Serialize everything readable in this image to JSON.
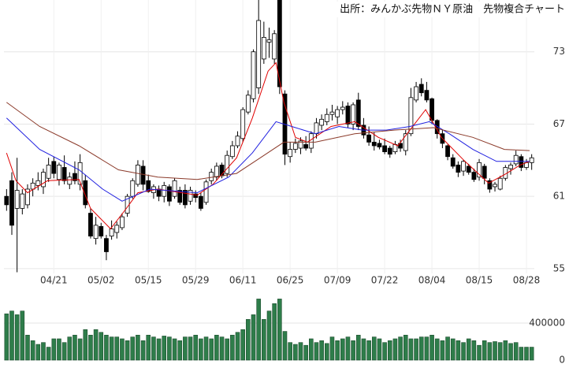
{
  "chart_data": {
    "type": "candlestick",
    "title": "出所：みんかぶ先物ＮＹ原油　先物複合チャート",
    "up_color": "#ffffff",
    "down_color": "#000000",
    "grid": true,
    "xlim": [
      -0.5,
      100.5
    ],
    "xticks": [
      {
        "value": 9,
        "label": "04/21"
      },
      {
        "value": 18,
        "label": "05/02"
      },
      {
        "value": 27,
        "label": "05/15"
      },
      {
        "value": 36,
        "label": "05/29"
      },
      {
        "value": 45,
        "label": "06/11"
      },
      {
        "value": 54,
        "label": "06/25"
      },
      {
        "value": 63,
        "label": "07/09"
      },
      {
        "value": 72,
        "label": "07/22"
      },
      {
        "value": 81,
        "label": "08/04"
      },
      {
        "value": 90,
        "label": "08/15"
      },
      {
        "value": 99,
        "label": "08/28"
      }
    ],
    "ylim": [
      54.6,
      77.3
    ],
    "yticks": [
      55,
      61,
      67,
      73
    ],
    "ohlc": [
      [
        61.0,
        61.6,
        59.8,
        60.3
      ],
      [
        62.3,
        63.0,
        57.8,
        58.6
      ],
      [
        60.0,
        64.2,
        54.7,
        61.5
      ],
      [
        60.0,
        61.6,
        59.5,
        61.2
      ],
      [
        60.3,
        62.0,
        60.0,
        61.6
      ],
      [
        61.6,
        62.5,
        61.0,
        62.1
      ],
      [
        61.9,
        63.0,
        61.5,
        62.3
      ],
      [
        61.8,
        63.3,
        61.2,
        63.0
      ],
      [
        62.5,
        64.2,
        62.2,
        63.6
      ],
      [
        63.9,
        64.3,
        62.5,
        62.9
      ],
      [
        62.4,
        63.8,
        61.9,
        63.6
      ],
      [
        63.4,
        64.4,
        62.0,
        62.3
      ],
      [
        62.0,
        63.0,
        61.6,
        62.6
      ],
      [
        62.9,
        63.9,
        62.0,
        62.3
      ],
      [
        62.0,
        64.5,
        61.5,
        63.8
      ],
      [
        62.3,
        62.8,
        60.0,
        60.3
      ],
      [
        59.6,
        60.0,
        57.5,
        57.7
      ],
      [
        57.5,
        59.3,
        57.0,
        58.6
      ],
      [
        58.5,
        58.8,
        57.5,
        57.7
      ],
      [
        57.5,
        57.8,
        55.7,
        56.4
      ],
      [
        57.7,
        59.0,
        57.4,
        58.3
      ],
      [
        58.0,
        58.9,
        57.5,
        58.6
      ],
      [
        58.4,
        59.6,
        58.2,
        59.3
      ],
      [
        59.6,
        61.2,
        59.3,
        61.0
      ],
      [
        61.0,
        62.5,
        60.8,
        62.3
      ],
      [
        62.0,
        64.0,
        61.8,
        63.6
      ],
      [
        63.5,
        64.0,
        61.5,
        62.0
      ],
      [
        62.3,
        62.8,
        61.3,
        61.4
      ],
      [
        61.3,
        62.0,
        60.8,
        61.8
      ],
      [
        61.6,
        61.9,
        60.6,
        61.0
      ],
      [
        61.0,
        62.2,
        60.5,
        61.9
      ],
      [
        61.8,
        62.0,
        60.2,
        60.6
      ],
      [
        61.0,
        62.5,
        60.8,
        62.3
      ],
      [
        61.5,
        61.8,
        60.3,
        60.5
      ],
      [
        61.5,
        62.0,
        60.0,
        60.3
      ],
      [
        60.6,
        61.8,
        60.3,
        61.5
      ],
      [
        61.2,
        61.5,
        60.5,
        60.9
      ],
      [
        61.0,
        61.3,
        59.8,
        60.0
      ],
      [
        60.5,
        62.4,
        60.3,
        62.2
      ],
      [
        62.3,
        63.3,
        62.0,
        63.0
      ],
      [
        62.6,
        63.8,
        62.3,
        63.5
      ],
      [
        63.6,
        63.8,
        62.5,
        62.7
      ],
      [
        62.9,
        64.8,
        62.6,
        64.4
      ],
      [
        64.3,
        65.6,
        64.1,
        65.2
      ],
      [
        65.2,
        66.4,
        65.0,
        66.0
      ],
      [
        65.8,
        68.4,
        65.5,
        68.2
      ],
      [
        68.0,
        69.8,
        67.8,
        69.4
      ],
      [
        69.1,
        73.2,
        68.8,
        73.0
      ],
      [
        70.0,
        77.3,
        69.5,
        75.6
      ],
      [
        72.4,
        75.5,
        72.0,
        74.2
      ],
      [
        73.8,
        75.0,
        72.5,
        74.0
      ],
      [
        72.4,
        74.8,
        72.0,
        74.5
      ],
      [
        77.3,
        77.3,
        69.5,
        70.1
      ],
      [
        69.5,
        69.8,
        63.6,
        64.5
      ],
      [
        64.3,
        65.5,
        63.8,
        64.9
      ],
      [
        64.9,
        65.8,
        64.6,
        65.4
      ],
      [
        65.0,
        65.9,
        64.5,
        65.6
      ],
      [
        65.3,
        66.0,
        64.8,
        65.0
      ],
      [
        65.0,
        66.4,
        64.6,
        66.2
      ],
      [
        66.2,
        67.5,
        65.8,
        67.1
      ],
      [
        66.9,
        67.8,
        66.5,
        67.4
      ],
      [
        67.2,
        68.3,
        66.9,
        67.8
      ],
      [
        67.8,
        68.6,
        67.3,
        68.0
      ],
      [
        67.6,
        68.5,
        67.0,
        68.2
      ],
      [
        68.2,
        68.9,
        67.8,
        68.4
      ],
      [
        68.5,
        68.8,
        66.7,
        67.0
      ],
      [
        67.0,
        68.8,
        66.5,
        68.6
      ],
      [
        69.0,
        69.6,
        66.5,
        66.8
      ],
      [
        66.9,
        67.5,
        65.8,
        66.1
      ],
      [
        66.1,
        66.8,
        65.2,
        65.5
      ],
      [
        65.5,
        66.3,
        64.8,
        65.2
      ],
      [
        65.4,
        65.7,
        64.9,
        65.1
      ],
      [
        65.2,
        65.8,
        64.5,
        64.7
      ],
      [
        65.0,
        65.2,
        64.2,
        64.5
      ],
      [
        64.7,
        65.6,
        64.5,
        65.3
      ],
      [
        65.4,
        65.7,
        64.7,
        65.0
      ],
      [
        64.8,
        66.5,
        64.4,
        66.2
      ],
      [
        66.2,
        70.0,
        66.0,
        69.2
      ],
      [
        69.0,
        70.5,
        68.8,
        70.1
      ],
      [
        70.3,
        70.8,
        69.3,
        69.6
      ],
      [
        69.8,
        70.5,
        68.8,
        69.0
      ],
      [
        69.1,
        69.2,
        67.0,
        67.3
      ],
      [
        67.3,
        67.4,
        65.8,
        66.2
      ],
      [
        66.2,
        66.5,
        65.0,
        65.4
      ],
      [
        65.2,
        65.3,
        64.0,
        64.3
      ],
      [
        64.2,
        64.5,
        63.3,
        63.5
      ],
      [
        63.6,
        63.9,
        62.6,
        63.0
      ],
      [
        63.1,
        64.0,
        62.7,
        63.9
      ],
      [
        63.5,
        63.7,
        62.8,
        63.0
      ],
      [
        63.0,
        63.3,
        62.2,
        62.4
      ],
      [
        62.6,
        64.1,
        62.3,
        63.8
      ],
      [
        63.5,
        63.7,
        62.0,
        62.5
      ],
      [
        62.3,
        62.5,
        61.3,
        61.6
      ],
      [
        61.8,
        62.2,
        61.4,
        62.0
      ],
      [
        61.6,
        62.7,
        61.5,
        62.5
      ],
      [
        62.5,
        63.6,
        62.3,
        63.4
      ],
      [
        63.3,
        63.8,
        62.8,
        63.6
      ],
      [
        63.7,
        64.8,
        63.5,
        64.4
      ],
      [
        64.3,
        64.5,
        63.1,
        63.4
      ],
      [
        63.4,
        64.1,
        63.2,
        63.8
      ],
      [
        63.8,
        64.5,
        63.2,
        64.2
      ]
    ],
    "series": [
      {
        "color": "#e00000",
        "x": [
          0,
          1.8,
          4.0,
          7.8,
          13.8,
          16.0,
          19.8,
          22.8,
          25.0,
          28.8,
          36.3,
          39.3,
          43.8,
          46.8,
          49.8,
          51.3,
          52.8,
          55.0,
          57.3,
          61.8,
          66.3,
          70.8,
          74.5,
          76.8,
          79.8,
          82.8,
          87.3,
          91.8,
          94.8,
          97.8,
          99.6
        ],
        "values": [
          64.6,
          62.3,
          61.3,
          62.3,
          62.4,
          60.0,
          58.3,
          60.0,
          61.3,
          61.6,
          61.1,
          62.0,
          64.2,
          67.5,
          71.4,
          72.1,
          68.8,
          65.9,
          65.5,
          66.8,
          67.2,
          65.9,
          65.2,
          66.5,
          68.2,
          65.9,
          63.9,
          62.1,
          62.8,
          63.6,
          63.9
        ]
      },
      {
        "color": "#2020e0",
        "x": [
          0,
          6.3,
          13.8,
          18.3,
          22.0,
          27.3,
          36.3,
          42.3,
          46.8,
          51.3,
          54.3,
          58.8,
          63.3,
          67.8,
          72.3,
          76.8,
          80.5,
          84.3,
          88.8,
          93.3,
          99.6
        ],
        "values": [
          67.5,
          64.9,
          63.2,
          61.6,
          60.6,
          61.6,
          61.3,
          62.6,
          64.6,
          67.2,
          66.8,
          66.2,
          66.8,
          66.5,
          66.5,
          66.8,
          67.2,
          66.2,
          64.9,
          63.9,
          63.9
        ]
      },
      {
        "color": "#8b3a2a",
        "x": [
          0,
          6.3,
          13.8,
          21.3,
          28.8,
          36.3,
          43.8,
          48.3,
          52.8,
          58.8,
          66.3,
          73.8,
          81.3,
          88.8,
          94.8,
          99.6
        ],
        "values": [
          68.8,
          66.8,
          65.2,
          63.2,
          62.6,
          62.4,
          62.9,
          64.2,
          65.5,
          65.5,
          66.2,
          66.5,
          66.7,
          65.9,
          64.9,
          64.8
        ]
      }
    ],
    "volume": {
      "type": "bar",
      "color": "#2e7d4a",
      "ylim": [
        0,
        672000
      ],
      "yticks": [
        0,
        400000
      ],
      "values": [
        500000,
        530000,
        490000,
        530000,
        270000,
        210000,
        170000,
        190000,
        140000,
        230000,
        230000,
        190000,
        250000,
        270000,
        230000,
        330000,
        270000,
        330000,
        300000,
        270000,
        250000,
        250000,
        230000,
        210000,
        250000,
        270000,
        210000,
        270000,
        250000,
        230000,
        260000,
        250000,
        230000,
        210000,
        250000,
        250000,
        270000,
        230000,
        250000,
        230000,
        270000,
        250000,
        230000,
        270000,
        300000,
        330000,
        440000,
        490000,
        660000,
        440000,
        530000,
        610000,
        660000,
        310000,
        190000,
        170000,
        190000,
        160000,
        230000,
        190000,
        210000,
        180000,
        250000,
        210000,
        230000,
        250000,
        210000,
        270000,
        230000,
        210000,
        250000,
        230000,
        190000,
        210000,
        230000,
        250000,
        270000,
        230000,
        230000,
        250000,
        250000,
        270000,
        230000,
        210000,
        250000,
        230000,
        210000,
        190000,
        230000,
        210000,
        160000,
        210000,
        190000,
        200000,
        190000,
        210000,
        180000,
        190000,
        140000,
        140000,
        140000
      ]
    }
  }
}
